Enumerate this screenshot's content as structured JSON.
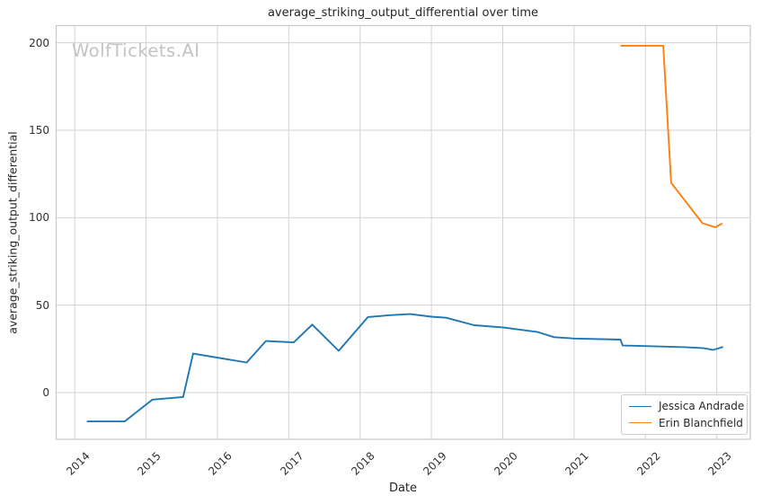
{
  "figure": {
    "watermark": "WolfTickets.AI"
  },
  "chart_data": {
    "type": "line",
    "title": "average_striking_output_differential over time",
    "xlabel": "Date",
    "ylabel": "average_striking_output_differential",
    "grid": true,
    "legend_position": "lower right",
    "x_ticks": [
      {
        "value": 2014,
        "label": "2014"
      },
      {
        "value": 2015,
        "label": "2015"
      },
      {
        "value": 2016,
        "label": "2016"
      },
      {
        "value": 2017,
        "label": "2017"
      },
      {
        "value": 2018,
        "label": "2018"
      },
      {
        "value": 2019,
        "label": "2019"
      },
      {
        "value": 2020,
        "label": "2020"
      },
      {
        "value": 2021,
        "label": "2021"
      },
      {
        "value": 2022,
        "label": "2022"
      },
      {
        "value": 2023,
        "label": "2023"
      }
    ],
    "y_ticks": [
      {
        "value": 0,
        "label": "0"
      },
      {
        "value": 50,
        "label": "50"
      },
      {
        "value": 100,
        "label": "100"
      },
      {
        "value": 150,
        "label": "150"
      },
      {
        "value": 200,
        "label": "200"
      }
    ],
    "xlim": [
      2013.74,
      2023.47
    ],
    "ylim": [
      -26.7,
      209.8
    ],
    "colors": {
      "grid": "#d2d2d2",
      "spine": "#c8c8c8",
      "text": "#262626",
      "watermark": "#c3c3c3"
    },
    "series": [
      {
        "name": "Jessica Andrade",
        "color": "#1f77b4",
        "points": [
          [
            2014.18,
            -16.5
          ],
          [
            2014.7,
            -16.5
          ],
          [
            2015.09,
            -4.0
          ],
          [
            2015.52,
            -2.5
          ],
          [
            2015.66,
            22.3
          ],
          [
            2016.41,
            17.2
          ],
          [
            2016.68,
            29.5
          ],
          [
            2017.07,
            28.7
          ],
          [
            2017.33,
            38.9
          ],
          [
            2017.7,
            23.9
          ],
          [
            2018.11,
            43.2
          ],
          [
            2018.42,
            44.3
          ],
          [
            2018.7,
            44.9
          ],
          [
            2019.0,
            43.4
          ],
          [
            2019.21,
            42.8
          ],
          [
            2019.6,
            38.5
          ],
          [
            2020.0,
            37.3
          ],
          [
            2020.49,
            34.6
          ],
          [
            2020.72,
            31.7
          ],
          [
            2021.0,
            30.9
          ],
          [
            2021.65,
            30.3
          ],
          [
            2021.68,
            26.9
          ],
          [
            2022.0,
            26.6
          ],
          [
            2022.55,
            26.0
          ],
          [
            2022.82,
            25.4
          ],
          [
            2022.95,
            24.4
          ],
          [
            2023.08,
            26.0
          ]
        ]
      },
      {
        "name": "Erin Blanchfield",
        "color": "#ff7f0e",
        "points": [
          [
            2021.66,
            198.3
          ],
          [
            2022.25,
            198.3
          ],
          [
            2022.36,
            119.9
          ],
          [
            2022.8,
            96.8
          ],
          [
            2022.98,
            94.5
          ],
          [
            2023.07,
            96.5
          ]
        ]
      }
    ]
  }
}
